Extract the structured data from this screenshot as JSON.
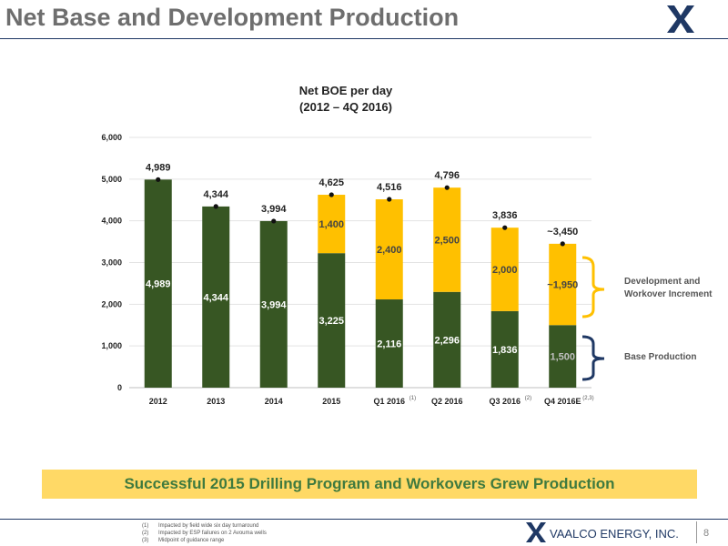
{
  "page": {
    "title": "Net Base and Development Production",
    "banner": "Successful 2015 Drilling Program and Workovers Grew Production",
    "company": "VAALCO ENERGY, INC.",
    "page_number": "8",
    "footnotes": [
      {
        "num": "(1)",
        "text": "Impacted by field wide six day turnaround"
      },
      {
        "num": "(2)",
        "text": "Impacted by ESP failures on 2 Avouma wells"
      },
      {
        "num": "(3)",
        "text": "Midpoint of guidance range"
      }
    ],
    "colors": {
      "base": "#375623",
      "development": "#ffc000",
      "title": "#6e6e6e",
      "rule": "#1f3864",
      "banner": "#ffd966",
      "banner_text": "#3f7a3f"
    },
    "icons": [
      "vaalco-logo-icon",
      "curly-brace-icon"
    ]
  },
  "chart_data": {
    "type": "bar",
    "stacked": true,
    "title": "Net BOE per day",
    "subtitle": "(2012 – 4Q 2016)",
    "xlabel": "",
    "ylabel": "",
    "ylim": [
      0,
      6000
    ],
    "yticks": [
      0,
      1000,
      2000,
      3000,
      4000,
      5000,
      6000
    ],
    "ytick_labels": [
      "0",
      "1,000",
      "2,000",
      "3,000",
      "4,000",
      "5,000",
      "6,000"
    ],
    "grid": true,
    "categories": [
      "2012",
      "2013",
      "2014",
      "2015",
      "Q1 2016",
      "Q2 2016",
      "Q3 2016",
      "Q4 2016E"
    ],
    "category_superscripts": [
      "",
      "",
      "",
      "",
      "(1)",
      "",
      "(2)",
      "(2,3)"
    ],
    "series": [
      {
        "name": "Base Production",
        "color": "#375623",
        "values": [
          4989,
          4344,
          3994,
          3225,
          2116,
          2296,
          1836,
          1500
        ],
        "labels": [
          "4,989",
          "4,344",
          "3,994",
          "3,225",
          "2,116",
          "2,296",
          "1,836",
          "1,500"
        ]
      },
      {
        "name": "Development and Workover Increment",
        "color": "#ffc000",
        "values": [
          0,
          0,
          0,
          1400,
          2400,
          2500,
          2000,
          1950
        ],
        "labels": [
          "",
          "",
          "",
          "1,400",
          "2,400",
          "2,500",
          "2,000",
          "~1,950"
        ]
      }
    ],
    "totals": [
      4989,
      4344,
      3994,
      4625,
      4516,
      4796,
      3836,
      3450
    ],
    "total_labels": [
      "4,989",
      "4,344",
      "3,994",
      "4,625",
      "4,516",
      "4,796",
      "3,836",
      "~3,450"
    ],
    "annotations": {
      "development_brace": [
        "Development and",
        "Workover Increment"
      ],
      "base_brace": "Base Production"
    }
  }
}
